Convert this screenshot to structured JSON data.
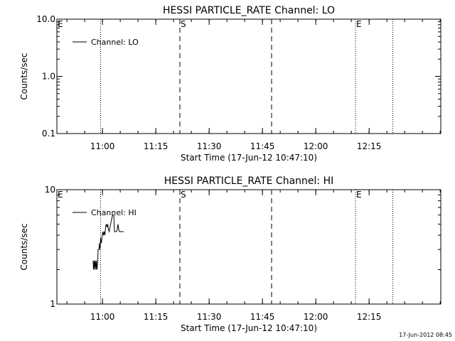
{
  "footer": {
    "timestamp": "17-Jun-2012 08:45"
  },
  "chart_data": [
    {
      "type": "line",
      "title": "HESSI PARTICLE_RATE Channel: LO",
      "xlabel": "Start Time (17-Jun-12 10:47:10)",
      "ylabel": "Counts/sec",
      "yscale": "log",
      "ylim": [
        0.1,
        10.0
      ],
      "yticks": [
        "10.0",
        "1.0",
        "0.1"
      ],
      "xlim_minutes": [
        0,
        108
      ],
      "xticks": [
        {
          "label": "11:00",
          "minute": 12.83
        },
        {
          "label": "11:15",
          "minute": 27.83
        },
        {
          "label": "11:30",
          "minute": 42.83
        },
        {
          "label": "11:45",
          "minute": 57.83
        },
        {
          "label": "12:00",
          "minute": 72.83
        },
        {
          "label": "12:15",
          "minute": 87.83
        }
      ],
      "legend": {
        "position": "top-left",
        "label": "Channel: LO"
      },
      "markers": [
        {
          "label": "E",
          "minute": 0,
          "style": "none"
        },
        {
          "label": "",
          "minute": 12.3,
          "style": "dotted"
        },
        {
          "label": "S",
          "minute": 34.6,
          "style": "dashed"
        },
        {
          "label": "",
          "minute": 60.4,
          "style": "dashed"
        },
        {
          "label": "E",
          "minute": 84.0,
          "style": "dotted"
        },
        {
          "label": "",
          "minute": 94.5,
          "style": "dotted"
        }
      ],
      "series": [
        {
          "name": "Channel: LO",
          "points": []
        }
      ]
    },
    {
      "type": "line",
      "title": "HESSI PARTICLE_RATE Channel: HI",
      "xlabel": "Start Time (17-Jun-12 10:47:10)",
      "ylabel": "Counts/sec",
      "yscale": "log",
      "ylim": [
        1,
        10
      ],
      "yticks": [
        "10",
        "1"
      ],
      "xlim_minutes": [
        0,
        108
      ],
      "xticks": [
        {
          "label": "11:00",
          "minute": 12.83
        },
        {
          "label": "11:15",
          "minute": 27.83
        },
        {
          "label": "11:30",
          "minute": 42.83
        },
        {
          "label": "11:45",
          "minute": 57.83
        },
        {
          "label": "12:00",
          "minute": 72.83
        },
        {
          "label": "12:15",
          "minute": 87.83
        }
      ],
      "legend": {
        "position": "top-left",
        "label": "Channel: HI"
      },
      "markers": [
        {
          "label": "E",
          "minute": 0,
          "style": "none"
        },
        {
          "label": "",
          "minute": 12.3,
          "style": "dotted"
        },
        {
          "label": "S",
          "minute": 34.6,
          "style": "dashed"
        },
        {
          "label": "",
          "minute": 60.4,
          "style": "dashed"
        },
        {
          "label": "E",
          "minute": 84.0,
          "style": "dotted"
        },
        {
          "label": "",
          "minute": 94.5,
          "style": "dotted"
        }
      ],
      "series": [
        {
          "name": "Channel: HI",
          "points": [
            [
              10.2,
              2.4
            ],
            [
              10.3,
              2.0
            ],
            [
              10.5,
              2.4
            ],
            [
              10.6,
              2.0
            ],
            [
              10.8,
              2.4
            ],
            [
              11.0,
              2.0
            ],
            [
              11.1,
              2.4
            ],
            [
              11.3,
              2.0
            ],
            [
              11.5,
              2.4
            ],
            [
              11.6,
              3.0
            ],
            [
              11.8,
              3.0
            ],
            [
              12.0,
              3.4
            ],
            [
              12.1,
              3.0
            ],
            [
              12.3,
              3.8
            ],
            [
              12.5,
              3.4
            ],
            [
              12.7,
              3.8
            ],
            [
              12.9,
              4.3
            ],
            [
              13.1,
              4.0
            ],
            [
              13.3,
              4.3
            ],
            [
              13.5,
              4.0
            ],
            [
              13.7,
              4.7
            ],
            [
              13.9,
              5.0
            ],
            [
              14.1,
              4.7
            ],
            [
              14.3,
              5.0
            ],
            [
              14.5,
              4.5
            ],
            [
              14.7,
              4.3
            ],
            [
              14.9,
              4.6
            ],
            [
              15.1,
              5.0
            ],
            [
              15.3,
              5.3
            ],
            [
              15.5,
              5.7
            ],
            [
              15.7,
              6.0
            ],
            [
              16.0,
              6.0
            ],
            [
              16.2,
              4.3
            ],
            [
              16.5,
              4.3
            ],
            [
              16.8,
              4.3
            ],
            [
              17.0,
              4.5
            ],
            [
              17.2,
              5.0
            ],
            [
              17.4,
              4.5
            ],
            [
              17.6,
              4.3
            ],
            [
              17.9,
              4.3
            ],
            [
              18.2,
              4.3
            ],
            [
              18.5,
              4.3
            ],
            [
              18.8,
              4.3
            ]
          ]
        }
      ]
    }
  ]
}
